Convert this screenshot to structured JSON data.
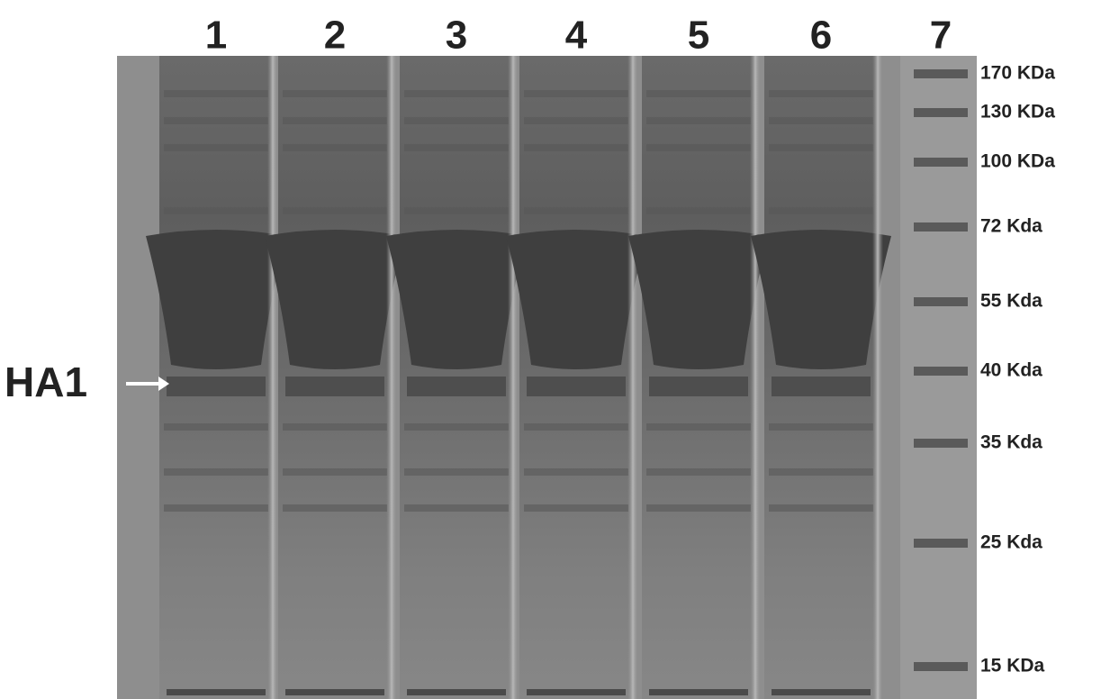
{
  "lanes": [
    "1",
    "2",
    "3",
    "4",
    "5",
    "6",
    "7"
  ],
  "markers": [
    "170 KDa",
    "130 KDa",
    "100 KDa",
    "72 Kda",
    "55 Kda",
    "40 Kda",
    "35 Kda",
    "25 Kda",
    "15 KDa"
  ],
  "annotation": "HA1"
}
